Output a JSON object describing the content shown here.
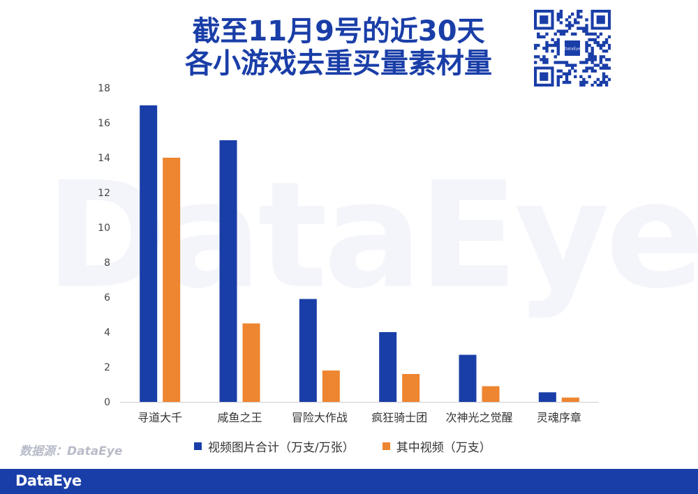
{
  "header": {
    "title_line1": "截至11月9号的近30天",
    "title_line2": "各小游戏去重买量素材量"
  },
  "qr": {
    "icon": "qr-code-icon",
    "center_label": "DataEye"
  },
  "watermark": {
    "text": "DataEye"
  },
  "source": {
    "text": "数据源：DataEye"
  },
  "footer": {
    "logo": "DataEye",
    "color": "#1a3ea8"
  },
  "colors": {
    "series1": "#1a3ea8",
    "series2": "#ee8530",
    "axis": "#cfcfcf",
    "text": "#333333"
  },
  "chart_data": {
    "type": "bar",
    "categories": [
      "寻道大千",
      "咸鱼之王",
      "冒险大作战",
      "疯狂骑士团",
      "次神光之觉醒",
      "灵魂序章"
    ],
    "series": [
      {
        "name": "视频图片合计（万支/万张）",
        "color": "#1a3ea8",
        "values": [
          17.0,
          15.0,
          5.9,
          4.0,
          2.7,
          0.55
        ]
      },
      {
        "name": "其中视频（万支）",
        "color": "#ee8530",
        "values": [
          14.0,
          4.5,
          1.8,
          1.6,
          0.9,
          0.25
        ]
      }
    ],
    "yticks": [
      0,
      2,
      4,
      6,
      8,
      10,
      12,
      14,
      16,
      18
    ],
    "ylim": [
      0,
      18
    ],
    "grid": false,
    "legend_position": "bottom"
  }
}
